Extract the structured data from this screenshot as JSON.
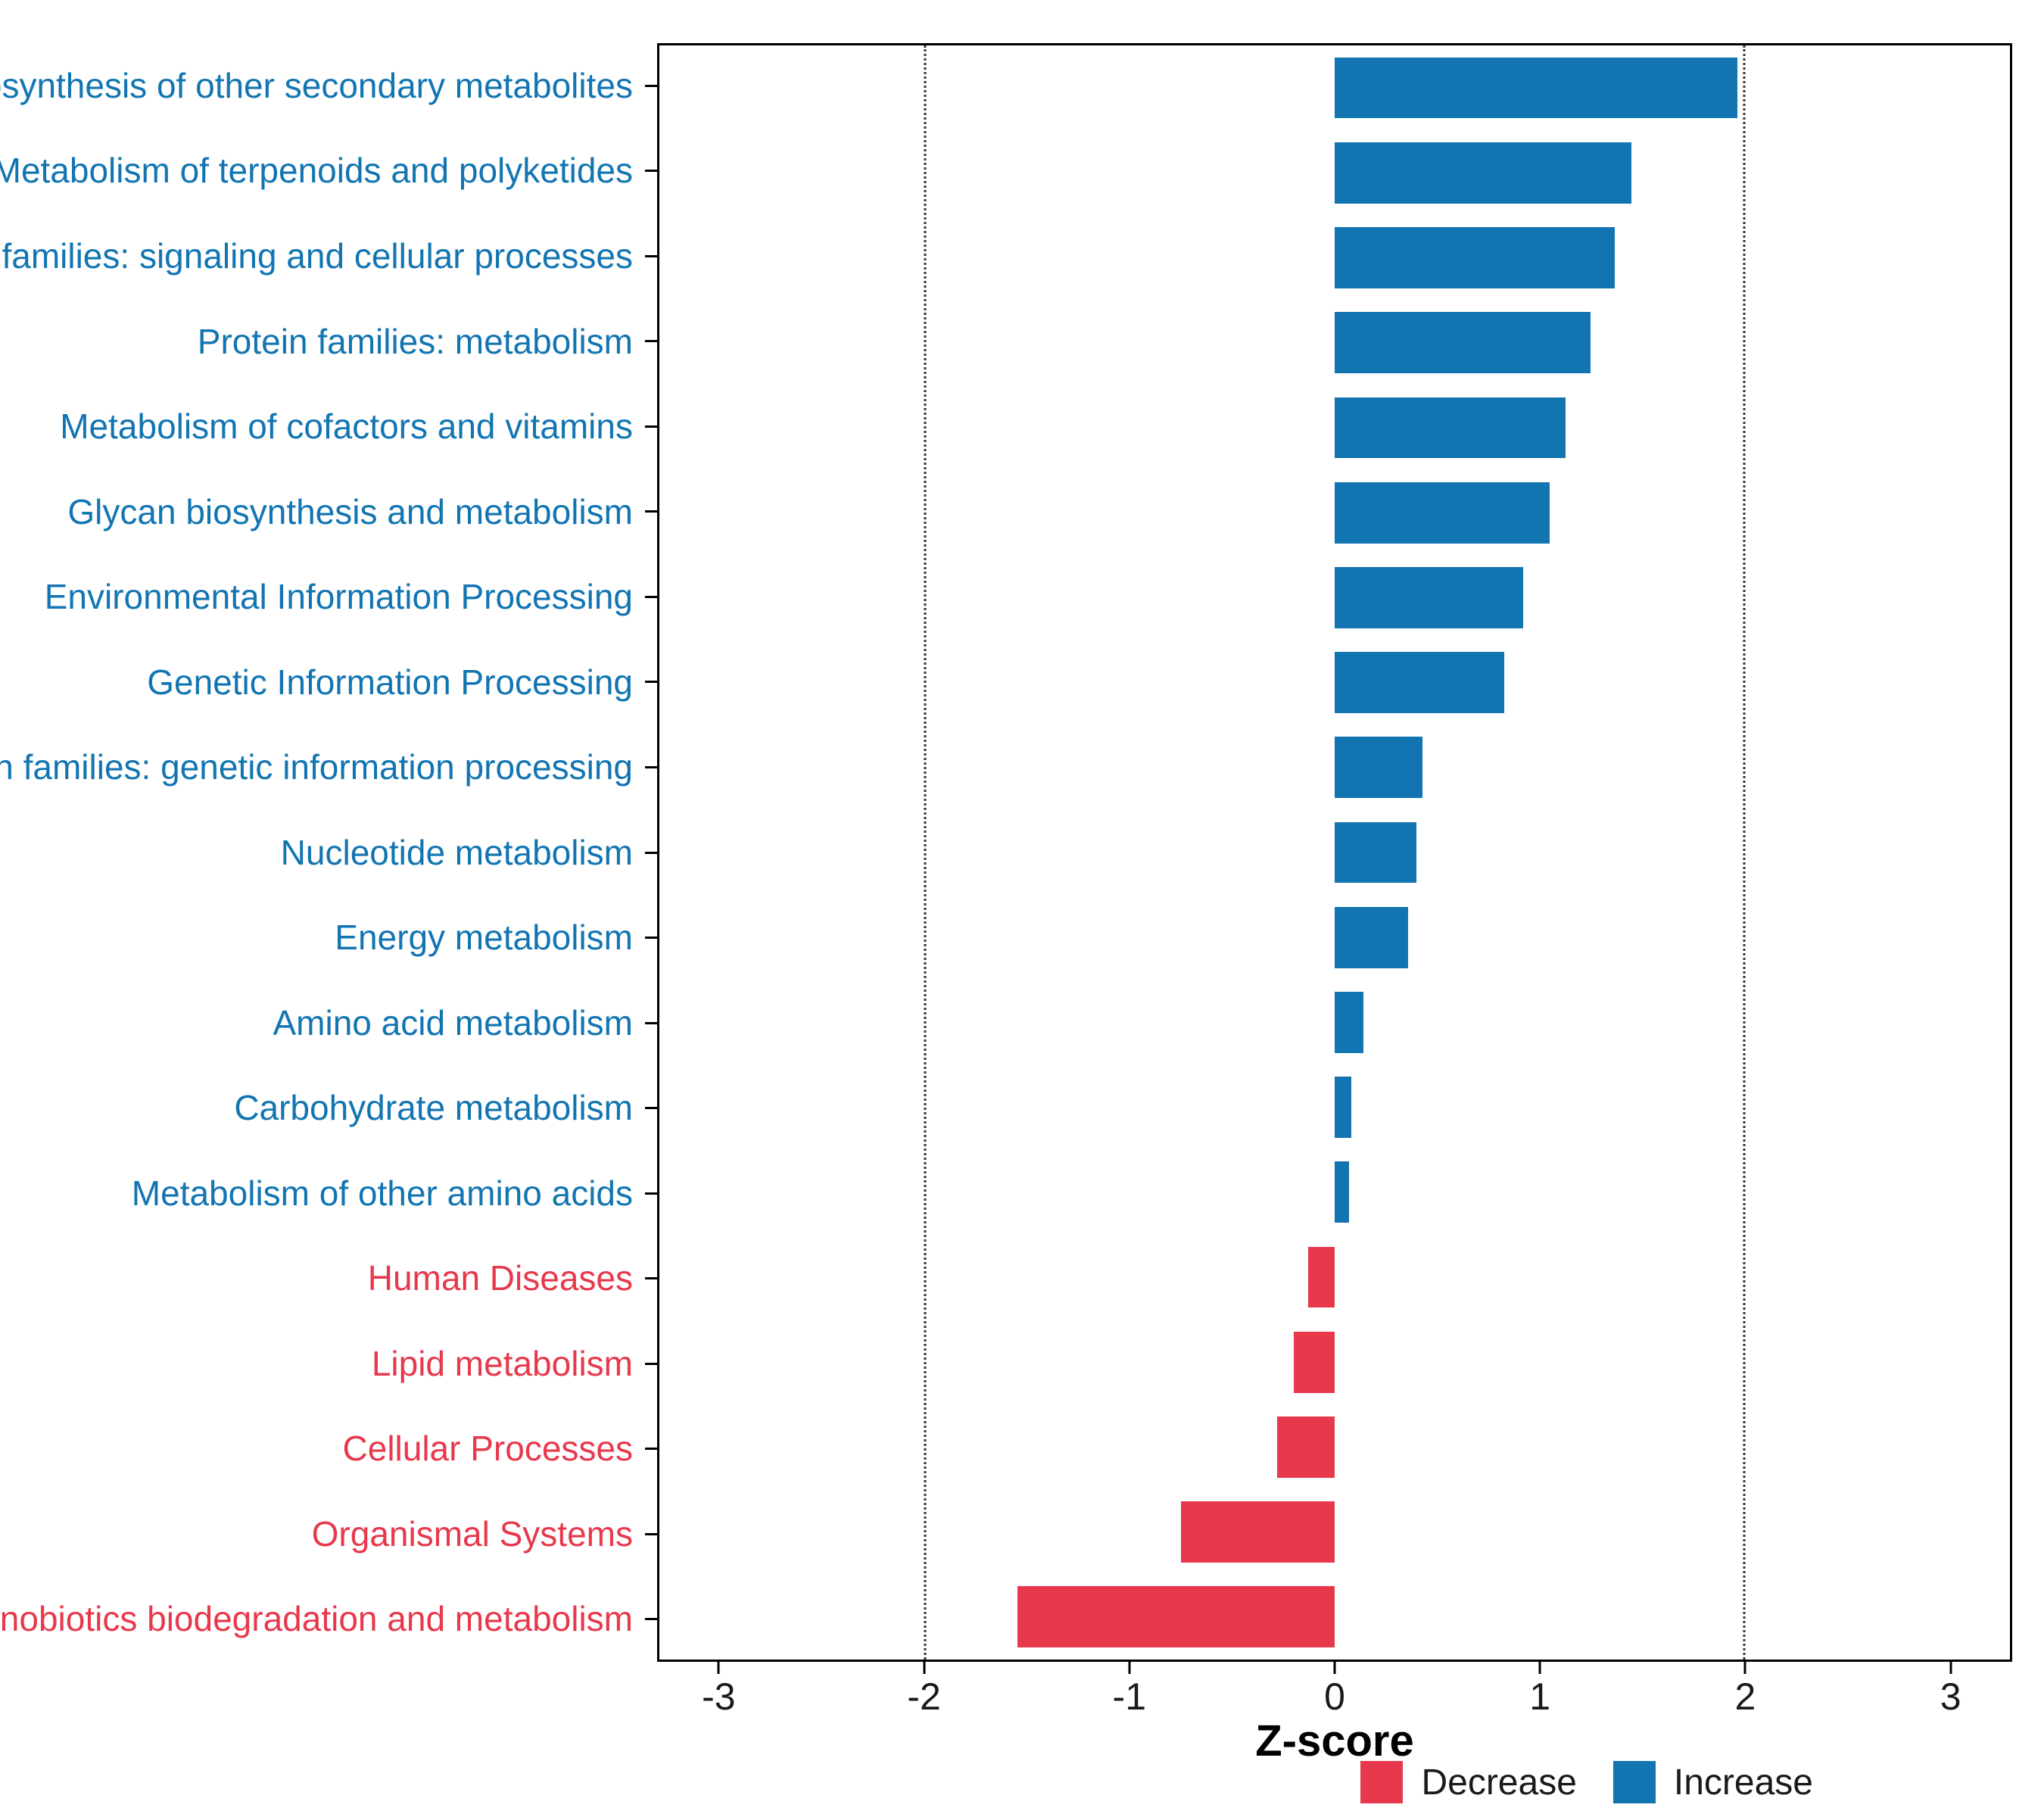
{
  "chart_data": {
    "type": "bar",
    "orientation": "horizontal",
    "title": "",
    "xlabel": "Z-score",
    "ylabel": "",
    "xlim": [
      -3.3,
      3.3
    ],
    "x_ticks": [
      -3,
      -2,
      -1,
      0,
      1,
      2,
      3
    ],
    "reference_lines": [
      -2,
      2
    ],
    "grid": "reference-lines-only",
    "legend_position": "bottom-right",
    "colors": {
      "increase": "#1275B2",
      "decrease": "#E7384C"
    },
    "bars": [
      {
        "category": "Biosynthesis of other secondary metabolites",
        "value": 1.97,
        "direction": "increase"
      },
      {
        "category": "Metabolism of terpenoids and polyketides",
        "value": 1.45,
        "direction": "increase"
      },
      {
        "category": "Protein families: signaling and cellular processes",
        "value": 1.37,
        "direction": "increase"
      },
      {
        "category": "Protein families: metabolism",
        "value": 1.25,
        "direction": "increase"
      },
      {
        "category": "Metabolism of cofactors and vitamins",
        "value": 1.13,
        "direction": "increase"
      },
      {
        "category": "Glycan biosynthesis and metabolism",
        "value": 1.05,
        "direction": "increase"
      },
      {
        "category": "Environmental Information Processing",
        "value": 0.92,
        "direction": "increase"
      },
      {
        "category": "Genetic Information Processing",
        "value": 0.83,
        "direction": "increase"
      },
      {
        "category": "Protein families: genetic information processing",
        "value": 0.43,
        "direction": "increase"
      },
      {
        "category": "Nucleotide metabolism",
        "value": 0.4,
        "direction": "increase"
      },
      {
        "category": "Energy metabolism",
        "value": 0.36,
        "direction": "increase"
      },
      {
        "category": "Amino acid metabolism",
        "value": 0.14,
        "direction": "increase"
      },
      {
        "category": "Carbohydrate metabolism",
        "value": 0.08,
        "direction": "increase"
      },
      {
        "category": "Metabolism of other amino acids",
        "value": 0.07,
        "direction": "increase"
      },
      {
        "category": "Human Diseases",
        "value": -0.13,
        "direction": "decrease"
      },
      {
        "category": "Lipid metabolism",
        "value": -0.2,
        "direction": "decrease"
      },
      {
        "category": "Cellular Processes",
        "value": -0.28,
        "direction": "decrease"
      },
      {
        "category": "Organismal Systems",
        "value": -0.75,
        "direction": "decrease"
      },
      {
        "category": "Xenobiotics biodegradation and metabolism",
        "value": -1.55,
        "direction": "decrease"
      }
    ],
    "legend": [
      {
        "label": "Decrease",
        "direction": "decrease"
      },
      {
        "label": "Increase",
        "direction": "increase"
      }
    ]
  }
}
